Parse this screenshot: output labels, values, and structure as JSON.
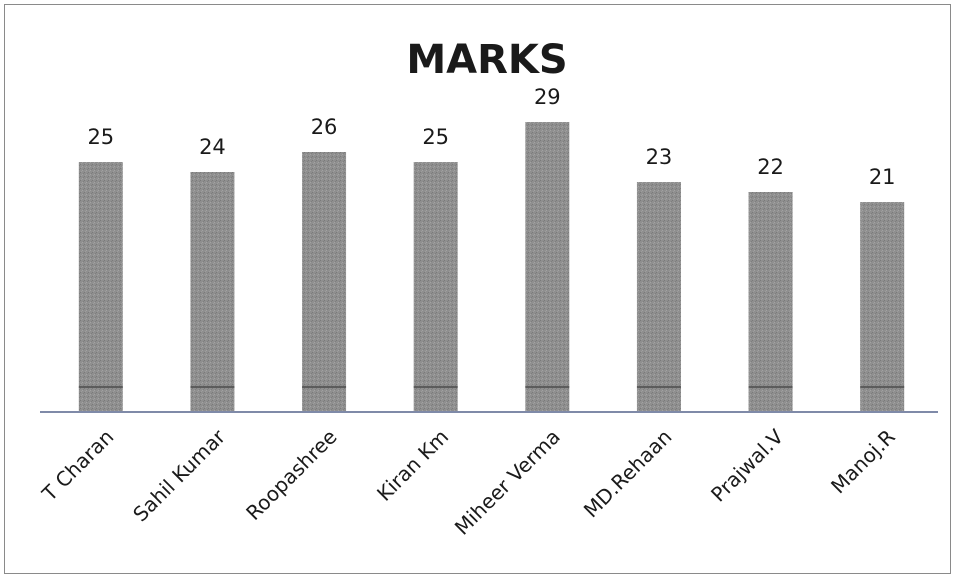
{
  "chart_data": {
    "type": "bar",
    "title": "MARKS",
    "categories": [
      "T Charan",
      "Sahil Kumar",
      "Roopashree",
      "Kiran Km",
      "Miheer Verma",
      "MD.Rehaan",
      "Prajwal.V",
      "Manoj.R"
    ],
    "values": [
      25,
      24,
      26,
      25,
      29,
      23,
      22,
      21
    ],
    "xlabel": "",
    "ylabel": "",
    "ylim": [
      0,
      30
    ],
    "grid": false,
    "data_labels": true,
    "bar_color": "#8f8f8f",
    "axis_color": "#7f8aa8"
  }
}
